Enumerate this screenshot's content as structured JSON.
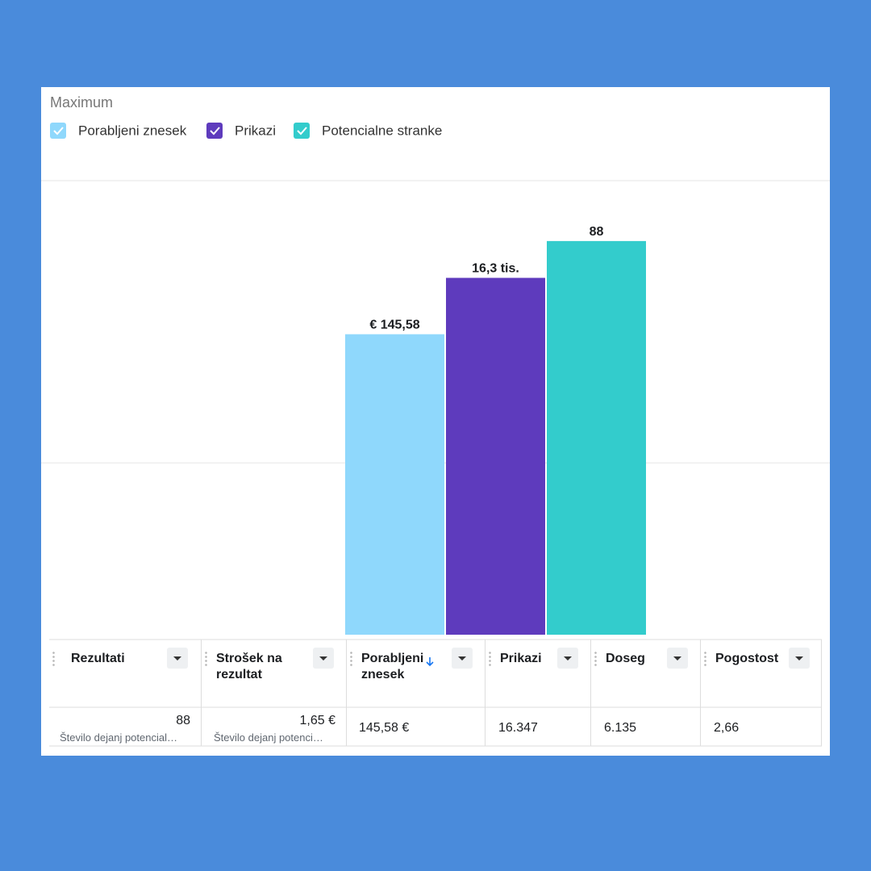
{
  "header": {
    "title": "Maximum"
  },
  "chart_data": {
    "type": "bar",
    "grid": true,
    "series": [
      {
        "name": "Porabljeni znesek",
        "color": "#8fd8fc",
        "values": [
          145.58
        ],
        "value_labels": [
          "€ 145,58"
        ],
        "ylim": [
          0,
          220
        ]
      },
      {
        "name": "Prikazi",
        "color": "#5e3bbd",
        "values": [
          16347
        ],
        "value_labels": [
          "16,3 tis."
        ],
        "ylim": [
          0,
          20800
        ]
      },
      {
        "name": "Potencialne stranke",
        "color": "#33cccc",
        "values": [
          88
        ],
        "value_labels": [
          "88"
        ],
        "ylim": [
          0,
          101.5
        ]
      }
    ]
  },
  "table": {
    "columns": [
      "Rezultati",
      "Strošek na rezultat",
      "Porabljeni znesek",
      "Prikazi",
      "Doseg",
      "Pogostost"
    ],
    "rows": [
      [
        {
          "value": "88",
          "caption": "Število dejanj potencial…"
        },
        {
          "value": "1,65 €",
          "caption": "Število dejanj potenci…"
        },
        {
          "value": "145,58 €"
        },
        {
          "value": "16.347"
        },
        {
          "value": "6.135"
        },
        {
          "value": "2,66"
        }
      ]
    ]
  }
}
